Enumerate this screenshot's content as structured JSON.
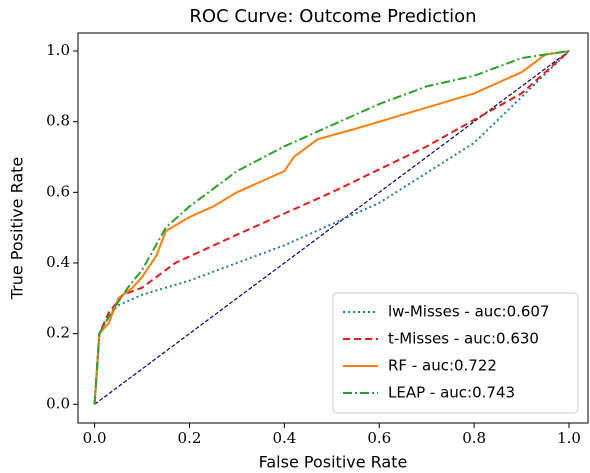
{
  "chart_data": {
    "type": "line",
    "title": "ROC Curve: Outcome Prediction",
    "x_label": "False Positive Rate",
    "y_label": "True Positive Rate",
    "xlim": [
      -0.035,
      1.04
    ],
    "ylim": [
      -0.053,
      1.051
    ],
    "xticks": [
      {
        "value": 0,
        "label": "0.0"
      },
      {
        "value": 0.2,
        "label": "0.2"
      },
      {
        "value": 0.4,
        "label": "0.4"
      },
      {
        "value": 0.6,
        "label": "0.6"
      },
      {
        "value": 0.8,
        "label": "0.8"
      },
      {
        "value": 1,
        "label": "1.0"
      }
    ],
    "yticks": [
      {
        "value": 0,
        "label": "0.0"
      },
      {
        "value": 0.2,
        "label": "0.2"
      },
      {
        "value": 0.4,
        "label": "0.4"
      },
      {
        "value": 0.6,
        "label": "0.6"
      },
      {
        "value": 0.8,
        "label": "0.8"
      },
      {
        "value": 1,
        "label": "1.0"
      }
    ],
    "legend_position": "lower right",
    "reference_line": {
      "x": [
        0,
        1
      ],
      "values": [
        0,
        1
      ],
      "color": "#000080"
    },
    "series": [
      {
        "name": "lw-Misses - auc:0.607",
        "color": "#1f77b4",
        "style": "dotted",
        "x": [
          0,
          0.01,
          0.03,
          0.05,
          0.1,
          0.2,
          0.4,
          0.6,
          0.8,
          1
        ],
        "values": [
          0,
          0.2,
          0.25,
          0.28,
          0.31,
          0.35,
          0.45,
          0.57,
          0.74,
          1
        ]
      },
      {
        "name": "t-Misses - auc:0.630",
        "color": "#e41a1c",
        "style": "dashed",
        "x": [
          0,
          0.01,
          0.03,
          0.06,
          0.1,
          0.17,
          0.3,
          0.5,
          0.7,
          0.9,
          1
        ],
        "values": [
          0,
          0.2,
          0.26,
          0.31,
          0.33,
          0.4,
          0.48,
          0.6,
          0.73,
          0.88,
          1
        ]
      },
      {
        "name": "RF - auc:0.722",
        "color": "#ff7f0e",
        "style": "solid",
        "x": [
          0,
          0.005,
          0.01,
          0.03,
          0.05,
          0.08,
          0.1,
          0.13,
          0.15,
          0.2,
          0.25,
          0.3,
          0.4,
          0.42,
          0.47,
          0.55,
          0.6,
          0.7,
          0.8,
          0.9,
          0.95,
          1
        ],
        "values": [
          0,
          0.1,
          0.2,
          0.23,
          0.3,
          0.33,
          0.36,
          0.42,
          0.49,
          0.53,
          0.56,
          0.6,
          0.66,
          0.7,
          0.75,
          0.78,
          0.8,
          0.84,
          0.88,
          0.94,
          0.99,
          1
        ]
      },
      {
        "name": "LEAP - auc:0.743",
        "color": "#2ca02c",
        "style": "dashdot",
        "x": [
          0,
          0.01,
          0.04,
          0.07,
          0.1,
          0.15,
          0.2,
          0.3,
          0.4,
          0.45,
          0.55,
          0.6,
          0.7,
          0.8,
          0.9,
          1
        ],
        "values": [
          0,
          0.2,
          0.27,
          0.33,
          0.38,
          0.5,
          0.56,
          0.66,
          0.73,
          0.76,
          0.82,
          0.85,
          0.9,
          0.93,
          0.98,
          1
        ]
      }
    ]
  }
}
